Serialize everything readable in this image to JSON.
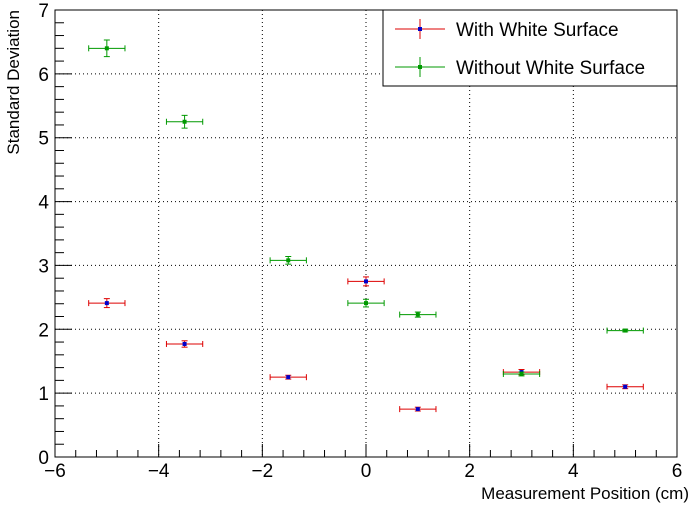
{
  "chart_data": {
    "type": "scatter",
    "xlabel": "Measurement Position (cm)",
    "ylabel": "Standard Deviation",
    "xlim": [
      -6,
      6
    ],
    "ylim": [
      0,
      7
    ],
    "xticks": [
      -6,
      -4,
      -2,
      0,
      2,
      4,
      6
    ],
    "yticks": [
      0,
      1,
      2,
      3,
      4,
      5,
      6,
      7
    ],
    "xtick_labels": [
      "−6",
      "−4",
      "−2",
      "0",
      "2",
      "4",
      "6"
    ],
    "ytick_labels": [
      "0",
      "1",
      "2",
      "3",
      "4",
      "5",
      "6",
      "7"
    ],
    "grid": true,
    "legend_position": "top-right",
    "series": [
      {
        "name": "With White Surface",
        "line_color": "#dd0000",
        "marker_color": "#0000cc",
        "points": [
          {
            "x": -5,
            "y": 2.41,
            "xerr": 0.35,
            "yerr": 0.07
          },
          {
            "x": -3.5,
            "y": 1.77,
            "xerr": 0.35,
            "yerr": 0.05
          },
          {
            "x": -1.5,
            "y": 1.25,
            "xerr": 0.35,
            "yerr": 0.03
          },
          {
            "x": 0,
            "y": 2.75,
            "xerr": 0.35,
            "yerr": 0.07
          },
          {
            "x": 1,
            "y": 0.75,
            "xerr": 0.35,
            "yerr": 0.03
          },
          {
            "x": 3,
            "y": 1.33,
            "xerr": 0.35,
            "yerr": 0.04
          },
          {
            "x": 5,
            "y": 1.1,
            "xerr": 0.35,
            "yerr": 0.03
          }
        ]
      },
      {
        "name": "Without White Surface",
        "line_color": "#009900",
        "marker_color": "#009900",
        "points": [
          {
            "x": -5,
            "y": 6.4,
            "xerr": 0.35,
            "yerr": 0.13
          },
          {
            "x": -3.5,
            "y": 5.25,
            "xerr": 0.35,
            "yerr": 0.1
          },
          {
            "x": -1.5,
            "y": 3.08,
            "xerr": 0.35,
            "yerr": 0.06
          },
          {
            "x": 0,
            "y": 2.41,
            "xerr": 0.35,
            "yerr": 0.06
          },
          {
            "x": 1,
            "y": 2.23,
            "xerr": 0.35,
            "yerr": 0.04
          },
          {
            "x": 3,
            "y": 1.3,
            "xerr": 0.35,
            "yerr": 0.03
          },
          {
            "x": 5,
            "y": 1.98,
            "xerr": 0.35,
            "yerr": 0.02
          }
        ]
      }
    ]
  }
}
